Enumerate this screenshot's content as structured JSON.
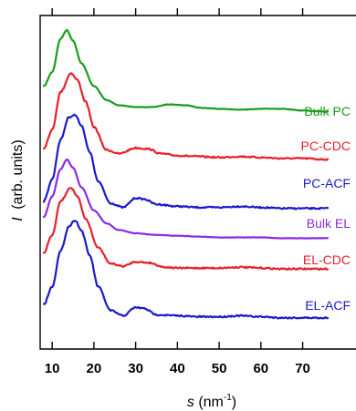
{
  "chart_data": {
    "type": "line",
    "xlabel": "s (nm⁻¹)",
    "xlabel_var": "s",
    "xlabel_unit_base": "(nm",
    "xlabel_unit_exp": "-1",
    "xlabel_unit_close": ")",
    "ylabel": "I (arb. units)",
    "ylabel_var": "I",
    "ylabel_rest": "(arb. units)",
    "xlim": [
      8,
      76
    ],
    "x_ticks": [
      10,
      20,
      30,
      40,
      50,
      60,
      70
    ],
    "x_tick_labels": [
      "10",
      "20",
      "30",
      "40",
      "50",
      "60",
      "70"
    ],
    "y_ticks_shown": false,
    "legend": "inline-right",
    "series": [
      {
        "name": "Bulk PC",
        "color": "#1a9c1a",
        "points": [
          [
            8,
            0.36
          ],
          [
            10,
            0.52
          ],
          [
            12,
            0.9
          ],
          [
            13.5,
            1.0
          ],
          [
            15,
            0.88
          ],
          [
            17,
            0.62
          ],
          [
            20,
            0.36
          ],
          [
            23,
            0.2
          ],
          [
            26,
            0.14
          ],
          [
            30,
            0.12
          ],
          [
            34,
            0.12
          ],
          [
            38,
            0.15
          ],
          [
            42,
            0.14
          ],
          [
            46,
            0.11
          ],
          [
            50,
            0.1
          ],
          [
            55,
            0.09
          ],
          [
            60,
            0.1
          ],
          [
            65,
            0.1
          ],
          [
            70,
            0.08
          ],
          [
            75,
            0.07
          ]
        ]
      },
      {
        "name": "PC-CDC",
        "color": "#e8202a",
        "points": [
          [
            8,
            0.16
          ],
          [
            10,
            0.35
          ],
          [
            12,
            0.75
          ],
          [
            14.5,
            0.95
          ],
          [
            16,
            0.88
          ],
          [
            18,
            0.65
          ],
          [
            20,
            0.38
          ],
          [
            23,
            0.14
          ],
          [
            26,
            0.1
          ],
          [
            30,
            0.16
          ],
          [
            33,
            0.15
          ],
          [
            36,
            0.1
          ],
          [
            40,
            0.08
          ],
          [
            45,
            0.07
          ],
          [
            50,
            0.06
          ],
          [
            55,
            0.07
          ],
          [
            60,
            0.06
          ],
          [
            65,
            0.05
          ],
          [
            70,
            0.05
          ],
          [
            75,
            0.04
          ]
        ]
      },
      {
        "name": "PC-ACF",
        "color": "#1a1acc",
        "points": [
          [
            8,
            0.09
          ],
          [
            10,
            0.3
          ],
          [
            12,
            0.68
          ],
          [
            14,
            0.9
          ],
          [
            15.5,
            0.92
          ],
          [
            17,
            0.82
          ],
          [
            19,
            0.56
          ],
          [
            21,
            0.28
          ],
          [
            24,
            0.07
          ],
          [
            27,
            0.03
          ],
          [
            30,
            0.12
          ],
          [
            32,
            0.11
          ],
          [
            35,
            0.06
          ],
          [
            40,
            0.04
          ],
          [
            45,
            0.03
          ],
          [
            50,
            0.03
          ],
          [
            55,
            0.04
          ],
          [
            60,
            0.03
          ],
          [
            65,
            0.02
          ],
          [
            70,
            0.02
          ],
          [
            75,
            0.02
          ]
        ]
      },
      {
        "name": "Bulk EL",
        "color": "#8a2be2",
        "points": [
          [
            8,
            0.3
          ],
          [
            10,
            0.55
          ],
          [
            12,
            0.88
          ],
          [
            13.5,
            1.0
          ],
          [
            15,
            0.9
          ],
          [
            17,
            0.66
          ],
          [
            20,
            0.38
          ],
          [
            23,
            0.22
          ],
          [
            26,
            0.14
          ],
          [
            30,
            0.1
          ],
          [
            35,
            0.08
          ],
          [
            40,
            0.07
          ],
          [
            45,
            0.06
          ],
          [
            50,
            0.05
          ],
          [
            55,
            0.05
          ],
          [
            60,
            0.05
          ],
          [
            65,
            0.04
          ],
          [
            70,
            0.04
          ],
          [
            75,
            0.04
          ]
        ]
      },
      {
        "name": "EL-CDC",
        "color": "#e8202a",
        "points": [
          [
            8,
            0.22
          ],
          [
            10,
            0.42
          ],
          [
            12,
            0.8
          ],
          [
            14.5,
            0.95
          ],
          [
            16,
            0.86
          ],
          [
            18,
            0.6
          ],
          [
            21,
            0.28
          ],
          [
            24,
            0.1
          ],
          [
            27,
            0.07
          ],
          [
            30,
            0.12
          ],
          [
            33,
            0.11
          ],
          [
            37,
            0.06
          ],
          [
            40,
            0.05
          ],
          [
            45,
            0.05
          ],
          [
            50,
            0.05
          ],
          [
            55,
            0.06
          ],
          [
            60,
            0.05
          ],
          [
            65,
            0.04
          ],
          [
            70,
            0.04
          ],
          [
            75,
            0.04
          ]
        ]
      },
      {
        "name": "EL-ACF",
        "color": "#1a1acc",
        "points": [
          [
            8,
            0.15
          ],
          [
            10,
            0.32
          ],
          [
            12,
            0.66
          ],
          [
            14,
            0.9
          ],
          [
            15.5,
            0.96
          ],
          [
            17,
            0.86
          ],
          [
            19,
            0.62
          ],
          [
            21,
            0.32
          ],
          [
            24,
            0.09
          ],
          [
            27,
            0.04
          ],
          [
            30,
            0.12
          ],
          [
            32,
            0.11
          ],
          [
            35,
            0.05
          ],
          [
            40,
            0.04
          ],
          [
            45,
            0.03
          ],
          [
            50,
            0.03
          ],
          [
            55,
            0.04
          ],
          [
            60,
            0.03
          ],
          [
            65,
            0.02
          ],
          [
            70,
            0.02
          ],
          [
            75,
            0.02
          ]
        ]
      }
    ]
  }
}
